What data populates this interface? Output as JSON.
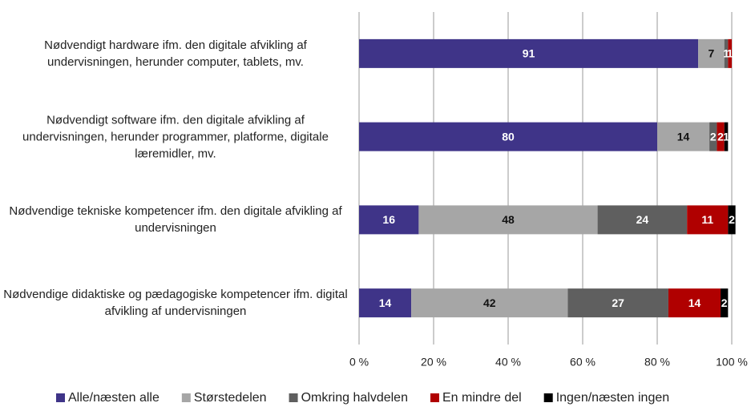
{
  "chart_data": {
    "type": "stacked_bar_horizontal",
    "categories": [
      "Nødvendigt hardware ifm. den digitale afvikling af undervisningen, herunder computer, tablets, mv.",
      "Nødvendigt software ifm. den digitale afvikling af undervisningen, herunder programmer, platforme, digitale læremidler, mv.",
      "Nødvendige tekniske kompetencer ifm. den digitale afvikling af undervisningen",
      "Nødvendige didaktiske og pædagogiske kompetencer ifm. digital afvikling af undervisningen"
    ],
    "series": [
      {
        "name": "Alle/næsten alle",
        "color": "#3f3488",
        "values": [
          91,
          80,
          16,
          14
        ]
      },
      {
        "name": "Størstedelen",
        "color": "#a6a6a6",
        "values": [
          7,
          14,
          48,
          42
        ]
      },
      {
        "name": "Omkring halvdelen",
        "color": "#5f5f5f",
        "values": [
          1,
          2,
          24,
          27
        ]
      },
      {
        "name": "En mindre del",
        "color": "#b00000",
        "values": [
          1,
          2,
          11,
          14
        ]
      },
      {
        "name": "Ingen/næsten ingen",
        "color": "#000000",
        "values": [
          null,
          1,
          2,
          2
        ]
      }
    ],
    "xlim": [
      0,
      100
    ],
    "xticks": [
      {
        "value": 0,
        "label": "0 %"
      },
      {
        "value": 20,
        "label": "20 %"
      },
      {
        "value": 40,
        "label": "40 %"
      },
      {
        "value": 60,
        "label": "60 %"
      },
      {
        "value": 80,
        "label": "80 %"
      },
      {
        "value": 100,
        "label": "100 %"
      }
    ],
    "grid": true,
    "legend": "bottom"
  }
}
